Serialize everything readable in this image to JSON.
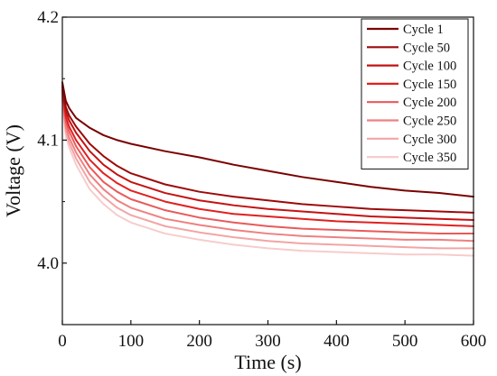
{
  "chart_data": {
    "type": "line",
    "title": "",
    "xlabel": "Time (s)",
    "ylabel": "Voltage (V)",
    "xlim": [
      0,
      600
    ],
    "ylim": [
      3.95,
      4.2
    ],
    "xticks": [
      0,
      100,
      200,
      300,
      400,
      500,
      600
    ],
    "yticks": [
      4.0,
      4.1,
      4.2
    ],
    "ytick_labels": [
      "4.0",
      "4.1",
      "4.2"
    ],
    "legend_position": "top-right",
    "grid": false,
    "x": [
      0,
      5,
      10,
      20,
      40,
      60,
      80,
      100,
      150,
      200,
      250,
      300,
      350,
      400,
      450,
      500,
      550,
      600
    ],
    "series": [
      {
        "name": "Cycle 1",
        "color": "#7a0000",
        "values": [
          4.147,
          4.132,
          4.126,
          4.118,
          4.11,
          4.104,
          4.1,
          4.097,
          4.091,
          4.086,
          4.08,
          4.075,
          4.07,
          4.066,
          4.062,
          4.059,
          4.057,
          4.054
        ]
      },
      {
        "name": "Cycle 50",
        "color": "#9c0a0a",
        "values": [
          4.145,
          4.127,
          4.12,
          4.111,
          4.097,
          4.087,
          4.079,
          4.073,
          4.064,
          4.058,
          4.054,
          4.051,
          4.048,
          4.046,
          4.044,
          4.043,
          4.042,
          4.041
        ]
      },
      {
        "name": "Cycle 100",
        "color": "#c41212",
        "values": [
          4.143,
          4.123,
          4.116,
          4.106,
          4.091,
          4.08,
          4.072,
          4.066,
          4.057,
          4.051,
          4.047,
          4.044,
          4.042,
          4.04,
          4.038,
          4.037,
          4.036,
          4.035
        ]
      },
      {
        "name": "Cycle 150",
        "color": "#e02020",
        "values": [
          4.141,
          4.119,
          4.111,
          4.1,
          4.084,
          4.073,
          4.065,
          4.059,
          4.05,
          4.044,
          4.04,
          4.038,
          4.036,
          4.034,
          4.033,
          4.032,
          4.031,
          4.03
        ]
      },
      {
        "name": "Cycle 200",
        "color": "#e85a5a",
        "values": [
          4.139,
          4.115,
          4.107,
          4.095,
          4.078,
          4.066,
          4.058,
          4.052,
          4.043,
          4.037,
          4.033,
          4.03,
          4.028,
          4.027,
          4.026,
          4.025,
          4.024,
          4.024
        ]
      },
      {
        "name": "Cycle 250",
        "color": "#ee8080",
        "values": [
          4.137,
          4.111,
          4.102,
          4.09,
          4.072,
          4.06,
          4.051,
          4.045,
          4.036,
          4.031,
          4.027,
          4.024,
          4.022,
          4.021,
          4.02,
          4.019,
          4.019,
          4.018
        ]
      },
      {
        "name": "Cycle 300",
        "color": "#f3a4a4",
        "values": [
          4.135,
          4.107,
          4.098,
          4.085,
          4.066,
          4.054,
          4.045,
          4.039,
          4.03,
          4.025,
          4.021,
          4.018,
          4.016,
          4.015,
          4.014,
          4.013,
          4.012,
          4.012
        ]
      },
      {
        "name": "Cycle 350",
        "color": "#f7cccc",
        "values": [
          4.133,
          4.103,
          4.094,
          4.08,
          4.06,
          4.048,
          4.039,
          4.033,
          4.024,
          4.019,
          4.015,
          4.012,
          4.01,
          4.009,
          4.008,
          4.007,
          4.007,
          4.006
        ]
      }
    ]
  }
}
